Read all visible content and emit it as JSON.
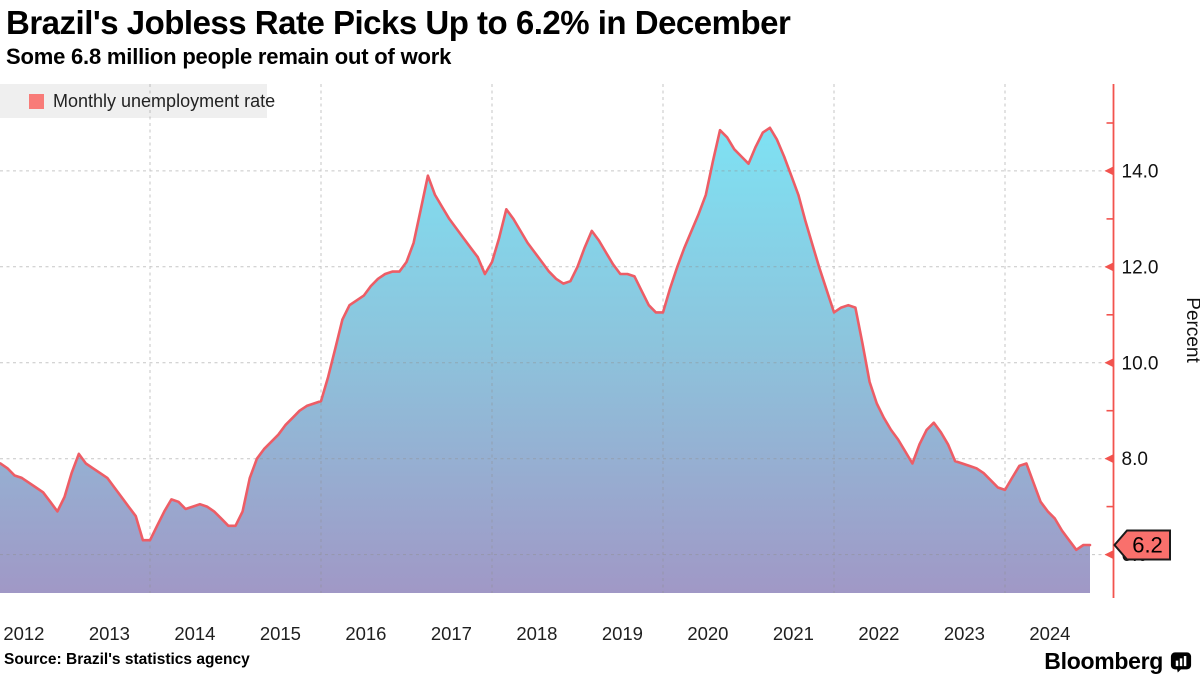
{
  "header": {
    "title": "Brazil's Jobless Rate Picks Up to 6.2% in December",
    "subtitle": "Some 6.8 million people remain out of work"
  },
  "legend": {
    "label": "Monthly unemployment rate",
    "swatch_color": "#f87b78",
    "background_color": "#efefef"
  },
  "footer": {
    "source": "Source: Brazil's statistics agency",
    "brand": "Bloomberg",
    "brand_icon": "bar-chart-terminal-icon"
  },
  "y_axis": {
    "title": "Percent",
    "major_ticks": [
      {
        "value": 6,
        "label": "6.0"
      },
      {
        "value": 8,
        "label": "8.0"
      },
      {
        "value": 10,
        "label": "10.0"
      },
      {
        "value": 12,
        "label": "12.0"
      },
      {
        "value": 14,
        "label": "14.0"
      }
    ],
    "minor_tick_values": [
      7,
      9,
      11,
      13,
      15
    ],
    "current_value_tag": "6.2"
  },
  "x_axis": {
    "labels": [
      "2012",
      "2013",
      "2014",
      "2015",
      "2016",
      "2017",
      "2018",
      "2019",
      "2020",
      "2021",
      "2022",
      "2023",
      "2024"
    ],
    "gridline_years": [
      2014,
      2016,
      2018,
      2020,
      2022,
      2024
    ]
  },
  "chart_data": {
    "type": "area",
    "title": "Brazil's Jobless Rate Picks Up to 6.2% in December",
    "ylabel": "Percent",
    "series_name": "Monthly unemployment rate",
    "frequency": "monthly",
    "start_month": "2012-03",
    "end_month": "2024-12",
    "last_value": 6.2,
    "y_axis_major_range": [
      6,
      14
    ],
    "values": [
      7.95,
      7.9,
      7.8,
      7.65,
      7.6,
      7.5,
      7.4,
      7.3,
      7.1,
      6.9,
      7.2,
      7.7,
      8.1,
      7.9,
      7.8,
      7.7,
      7.6,
      7.4,
      7.2,
      7.0,
      6.8,
      6.3,
      6.3,
      6.6,
      6.9,
      7.15,
      7.1,
      6.95,
      7.0,
      7.05,
      7.0,
      6.9,
      6.75,
      6.6,
      6.6,
      6.9,
      7.6,
      8.0,
      8.2,
      8.35,
      8.5,
      8.7,
      8.85,
      9.0,
      9.1,
      9.15,
      9.2,
      9.7,
      10.3,
      10.9,
      11.2,
      11.3,
      11.4,
      11.6,
      11.75,
      11.85,
      11.9,
      11.9,
      12.1,
      12.5,
      13.2,
      13.9,
      13.5,
      13.25,
      13.0,
      12.8,
      12.6,
      12.4,
      12.2,
      11.85,
      12.1,
      12.6,
      13.2,
      13.0,
      12.75,
      12.5,
      12.3,
      12.1,
      11.9,
      11.75,
      11.65,
      11.7,
      12.0,
      12.4,
      12.75,
      12.55,
      12.3,
      12.05,
      11.85,
      11.85,
      11.8,
      11.5,
      11.2,
      11.05,
      11.05,
      11.55,
      12.0,
      12.4,
      12.75,
      13.1,
      13.5,
      14.2,
      14.85,
      14.7,
      14.45,
      14.3,
      14.15,
      14.5,
      14.8,
      14.9,
      14.65,
      14.3,
      13.9,
      13.5,
      12.95,
      12.45,
      11.95,
      11.5,
      11.05,
      11.15,
      11.2,
      11.15,
      10.4,
      9.6,
      9.15,
      8.85,
      8.6,
      8.4,
      8.15,
      7.9,
      8.3,
      8.6,
      8.75,
      8.55,
      8.3,
      7.95,
      7.9,
      7.85,
      7.8,
      7.7,
      7.55,
      7.4,
      7.35,
      7.6,
      7.85,
      7.9,
      7.5,
      7.1,
      6.9,
      6.75,
      6.5,
      6.3,
      6.1,
      6.2
    ],
    "colors": {
      "line": "#ed5d66",
      "fill_top": "#7de4f5",
      "fill_mid": "#8cc5dd",
      "fill_bottom": "#a098c6",
      "axis": "#f2534e",
      "tag_fill": "#f9706c",
      "tag_border": "#1a1a1a",
      "gridline": "#8f8f8f"
    }
  }
}
